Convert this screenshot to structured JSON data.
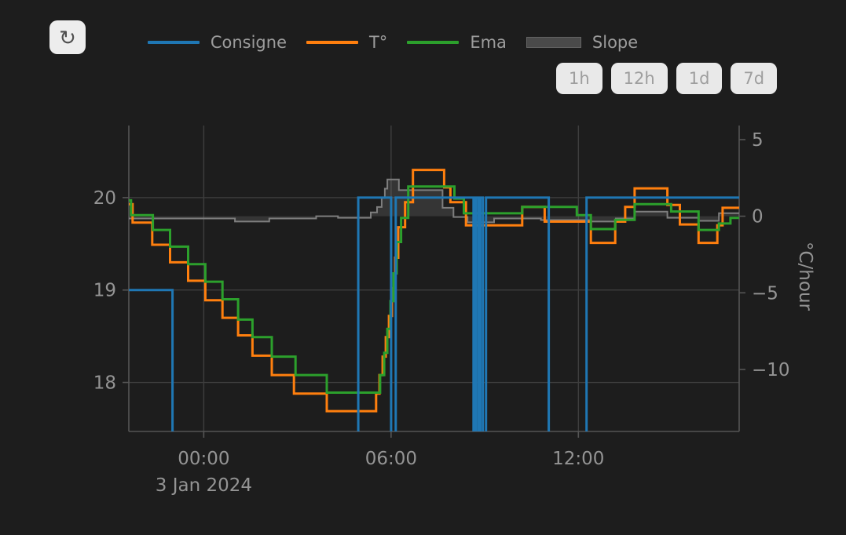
{
  "panel": {
    "background": "#1d1d1d"
  },
  "toolbar": {
    "refresh_icon_glyph": "↻"
  },
  "legend": {
    "items": [
      {
        "id": "consigne",
        "label": "Consigne",
        "color": "#1f77b4",
        "swatch": "line"
      },
      {
        "id": "temperature",
        "label": "T°",
        "color": "#ff7f0e",
        "swatch": "line"
      },
      {
        "id": "ema",
        "label": "Ema",
        "color": "#2ca02c",
        "swatch": "line"
      },
      {
        "id": "slope",
        "label": "Slope",
        "color": "#4a4a4a",
        "swatch": "band"
      }
    ]
  },
  "range_buttons": [
    {
      "id": "1h",
      "label": "1h"
    },
    {
      "id": "12h",
      "label": "12h"
    },
    {
      "id": "1d",
      "label": "1d"
    },
    {
      "id": "7d",
      "label": "7d"
    }
  ],
  "chart_data": {
    "type": "line",
    "title": "",
    "date_label": "3 Jan 2024",
    "x_axis": {
      "unit": "hours relative to 2024-01-03 00:00",
      "tick_hours": [
        0,
        6,
        12
      ],
      "tick_labels": [
        "00:00",
        "06:00",
        "12:00"
      ],
      "range_hours": [
        -2.4,
        17.15
      ]
    },
    "y_left": {
      "unit": "°C",
      "ticks": [
        20,
        19,
        18
      ],
      "tick_labels": [
        "20",
        "19",
        "18"
      ],
      "range": [
        17.47,
        20.78
      ]
    },
    "y_right": {
      "title": "°C/hour",
      "ticks": [
        5,
        0,
        -5,
        -10
      ],
      "tick_labels": [
        "5",
        "0",
        "−5",
        "−10"
      ],
      "range": [
        -14.05,
        5.92
      ]
    },
    "grid": true,
    "legend_position": "top",
    "colors": {
      "grid": "#3e3e3e",
      "axis_line": "#555555",
      "tick": "#555555",
      "tick_label": "#949494",
      "consigne": "#1f77b4",
      "temperature": "#ff7f0e",
      "ema": "#2ca02c",
      "slope_line": "#7e7e7e",
      "slope_fill": "rgba(140,140,140,0.22)"
    },
    "series": [
      {
        "name": "Slope",
        "id": "slope",
        "axis": "right",
        "style": "step-area",
        "baseline": 0,
        "width": 2,
        "points": [
          [
            -2.4,
            -0.15
          ],
          [
            1.0,
            -0.35
          ],
          [
            2.1,
            -0.15
          ],
          [
            3.6,
            0.0
          ],
          [
            4.3,
            -0.1
          ],
          [
            5.35,
            0.25
          ],
          [
            5.55,
            0.6
          ],
          [
            5.7,
            1.2
          ],
          [
            5.8,
            1.8
          ],
          [
            5.88,
            2.4
          ],
          [
            6.25,
            1.7
          ],
          [
            7.65,
            0.55
          ],
          [
            8.0,
            -0.05
          ],
          [
            8.45,
            -0.4
          ],
          [
            9.3,
            -0.15
          ],
          [
            10.8,
            -0.25
          ],
          [
            12.4,
            -0.35
          ],
          [
            13.2,
            -0.15
          ],
          [
            13.8,
            0.3
          ],
          [
            14.85,
            -0.1
          ],
          [
            15.85,
            -0.3
          ],
          [
            16.5,
            0.2
          ]
        ]
      },
      {
        "name": "T°",
        "id": "temperature",
        "axis": "left",
        "style": "step",
        "width": 3,
        "points": [
          [
            -2.4,
            19.93
          ],
          [
            -2.28,
            19.73
          ],
          [
            -1.65,
            19.49
          ],
          [
            -1.08,
            19.3
          ],
          [
            -0.5,
            19.1
          ],
          [
            0.05,
            18.89
          ],
          [
            0.6,
            18.7
          ],
          [
            1.1,
            18.51
          ],
          [
            1.56,
            18.29
          ],
          [
            2.18,
            18.08
          ],
          [
            2.89,
            17.88
          ],
          [
            3.94,
            17.69
          ],
          [
            5.52,
            17.88
          ],
          [
            5.63,
            18.08
          ],
          [
            5.73,
            18.28
          ],
          [
            5.83,
            18.49
          ],
          [
            5.93,
            18.72
          ],
          [
            6.03,
            19.02
          ],
          [
            6.13,
            19.35
          ],
          [
            6.23,
            19.68
          ],
          [
            6.45,
            19.95
          ],
          [
            6.7,
            20.3
          ],
          [
            7.7,
            20.11
          ],
          [
            7.9,
            19.95
          ],
          [
            8.4,
            19.7
          ],
          [
            10.2,
            19.9
          ],
          [
            10.92,
            19.74
          ],
          [
            12.4,
            19.51
          ],
          [
            13.18,
            19.74
          ],
          [
            13.5,
            19.9
          ],
          [
            13.8,
            20.1
          ],
          [
            14.85,
            19.92
          ],
          [
            15.25,
            19.71
          ],
          [
            15.85,
            19.51
          ],
          [
            16.45,
            19.7
          ],
          [
            16.62,
            19.89
          ]
        ]
      },
      {
        "name": "Ema",
        "id": "ema",
        "axis": "left",
        "style": "step",
        "width": 3,
        "points": [
          [
            -2.4,
            19.97
          ],
          [
            -2.33,
            19.81
          ],
          [
            -1.63,
            19.65
          ],
          [
            -1.08,
            19.47
          ],
          [
            -0.5,
            19.28
          ],
          [
            0.05,
            19.09
          ],
          [
            0.6,
            18.9
          ],
          [
            1.1,
            18.68
          ],
          [
            1.56,
            18.49
          ],
          [
            2.18,
            18.28
          ],
          [
            2.94,
            18.08
          ],
          [
            3.94,
            17.89
          ],
          [
            5.65,
            18.08
          ],
          [
            5.78,
            18.32
          ],
          [
            5.88,
            18.58
          ],
          [
            5.98,
            18.88
          ],
          [
            6.08,
            19.18
          ],
          [
            6.18,
            19.52
          ],
          [
            6.32,
            19.78
          ],
          [
            6.55,
            20.12
          ],
          [
            8.03,
            19.99
          ],
          [
            8.33,
            19.83
          ],
          [
            10.2,
            19.9
          ],
          [
            11.95,
            19.81
          ],
          [
            12.4,
            19.66
          ],
          [
            13.18,
            19.76
          ],
          [
            13.8,
            19.93
          ],
          [
            14.97,
            19.85
          ],
          [
            15.85,
            19.65
          ],
          [
            16.5,
            19.72
          ],
          [
            16.87,
            19.78
          ]
        ]
      },
      {
        "name": "Consigne",
        "id": "consigne",
        "axis": "left",
        "style": "step",
        "width": 3,
        "points": [
          [
            -2.4,
            19.0
          ],
          [
            -1.0,
            17.3
          ],
          [
            4.95,
            20.0
          ],
          [
            6.0,
            17.3
          ],
          [
            6.15,
            20.0
          ],
          [
            8.64,
            17.3
          ],
          [
            8.71,
            20.0
          ],
          [
            8.79,
            17.3
          ],
          [
            8.86,
            20.0
          ],
          [
            8.94,
            17.3
          ],
          [
            9.04,
            20.0
          ],
          [
            11.05,
            17.3
          ],
          [
            12.26,
            20.0
          ]
        ]
      }
    ]
  }
}
